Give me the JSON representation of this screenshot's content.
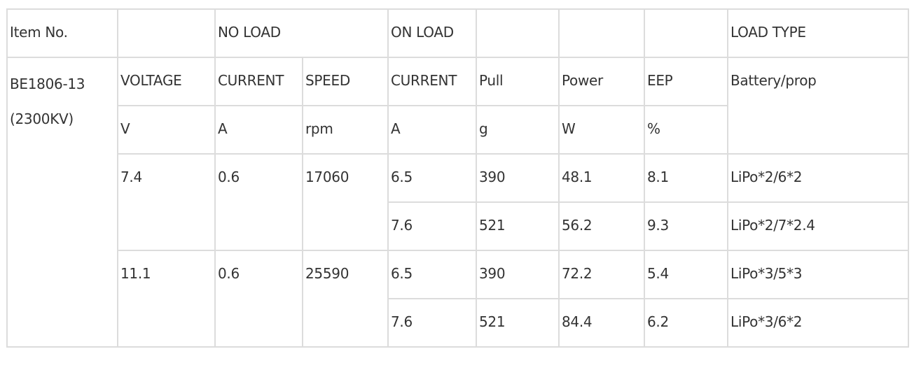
{
  "header_row": {
    "item_no": "Item No.",
    "no_load": "NO LOAD",
    "on_load": "ON LOAD",
    "load_type": "LOAD TYPE"
  },
  "item": {
    "model": "BE1806-13",
    "kv": "(2300KV)"
  },
  "columns": [
    "VOLTAGE",
    "CURRENT",
    "SPEED",
    "CURRENT",
    "Pull",
    "Power",
    "EEP",
    "Battery/prop"
  ],
  "units": [
    "V",
    "A",
    "rpm",
    "A",
    "g",
    "W",
    "%"
  ],
  "groups": [
    {
      "voltage": "7.4",
      "current": "0.6",
      "speed": "17060",
      "rows": [
        {
          "current": "6.5",
          "pull": "390",
          "power": "48.1",
          "eep": "8.1",
          "load": "LiPo*2/6*2"
        },
        {
          "current": "7.6",
          "pull": "521",
          "power": "56.2",
          "eep": "9.3",
          "load": "LiPo*2/7*2.4"
        }
      ]
    },
    {
      "voltage": "11.1",
      "current": "0.6",
      "speed": "25590",
      "rows": [
        {
          "current": "6.5",
          "pull": "390",
          "power": "72.2",
          "eep": "5.4",
          "load": "LiPo*3/5*3"
        },
        {
          "current": "7.6",
          "pull": "521",
          "power": "84.4",
          "eep": "6.2",
          "load": "LiPo*3/6*2"
        }
      ]
    }
  ]
}
